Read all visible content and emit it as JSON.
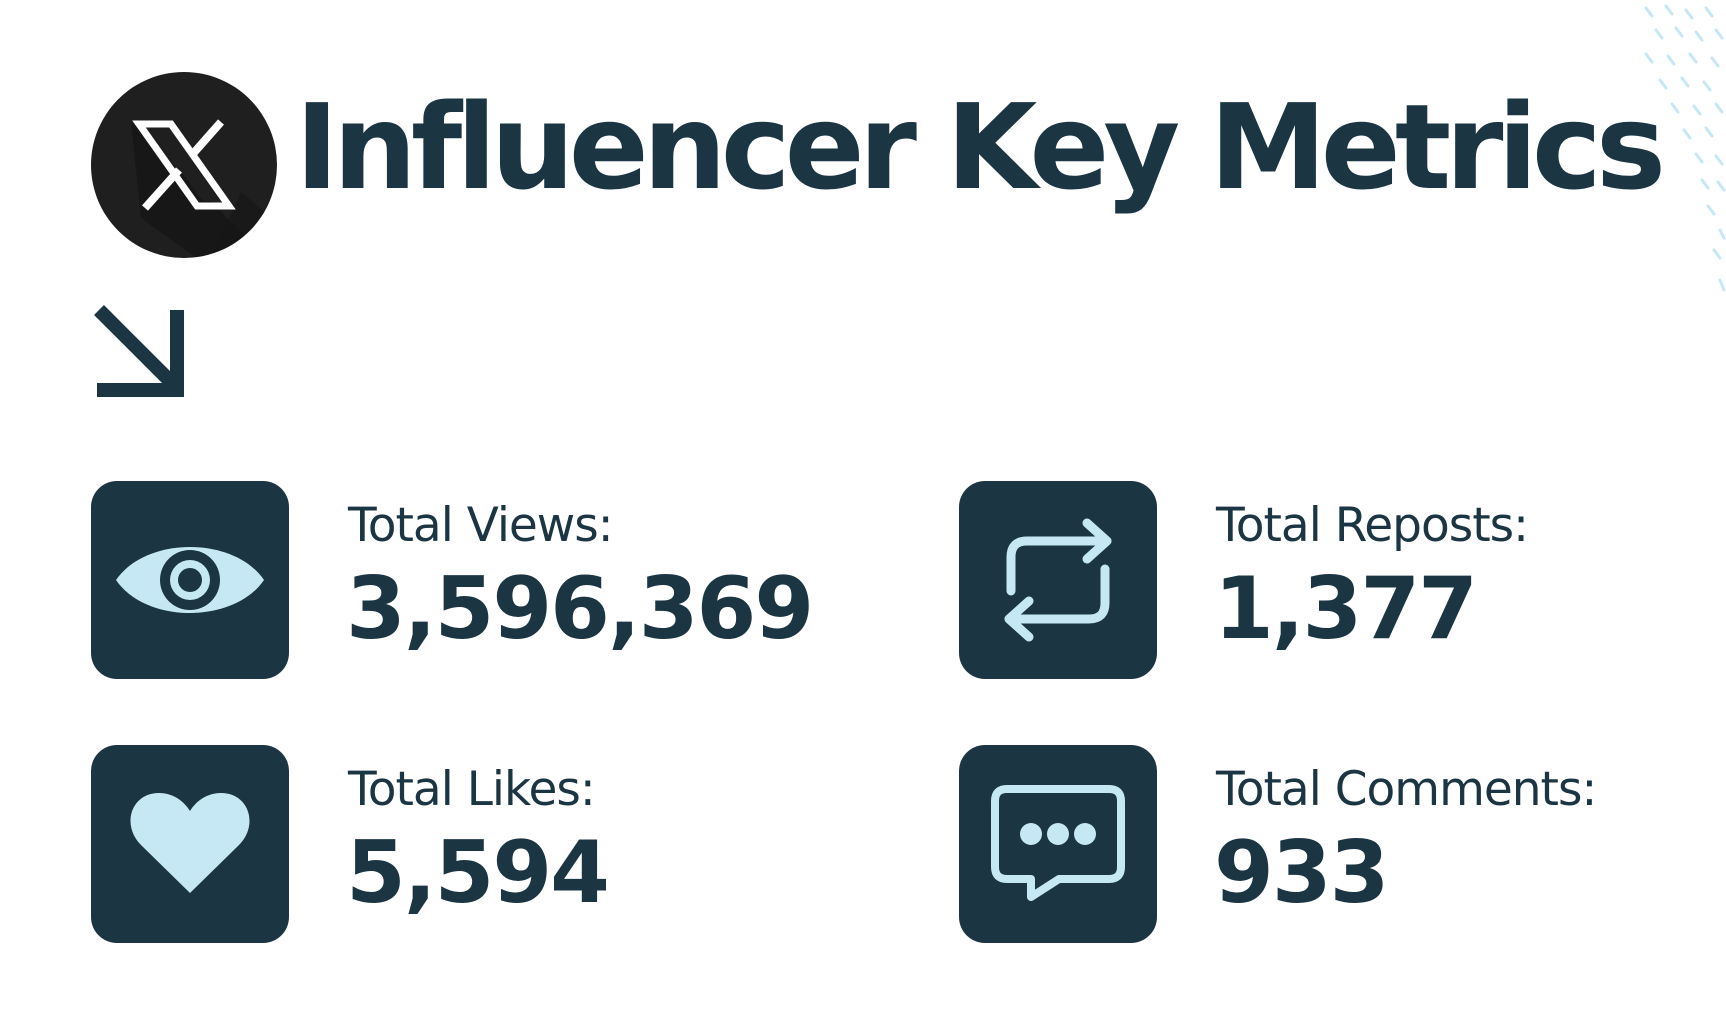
{
  "header": {
    "logo_icon": "x-logo-icon",
    "title": "Influencer Key Metrics",
    "arrow_icon": "arrow-down-right-icon"
  },
  "colors": {
    "primary": "#1b3542",
    "icon_accent": "#c6e8f4",
    "logo_background": "#1f1f1f",
    "decoration": "#c6e8f4"
  },
  "metrics": [
    {
      "icon": "eye-icon",
      "label": "Total Views:",
      "value": "3,596,369"
    },
    {
      "icon": "repost-icon",
      "label": "Total Reposts:",
      "value": "1,377"
    },
    {
      "icon": "heart-icon",
      "label": "Total Likes:",
      "value": "5,594"
    },
    {
      "icon": "comment-icon",
      "label": "Total Comments:",
      "value": "933"
    }
  ]
}
